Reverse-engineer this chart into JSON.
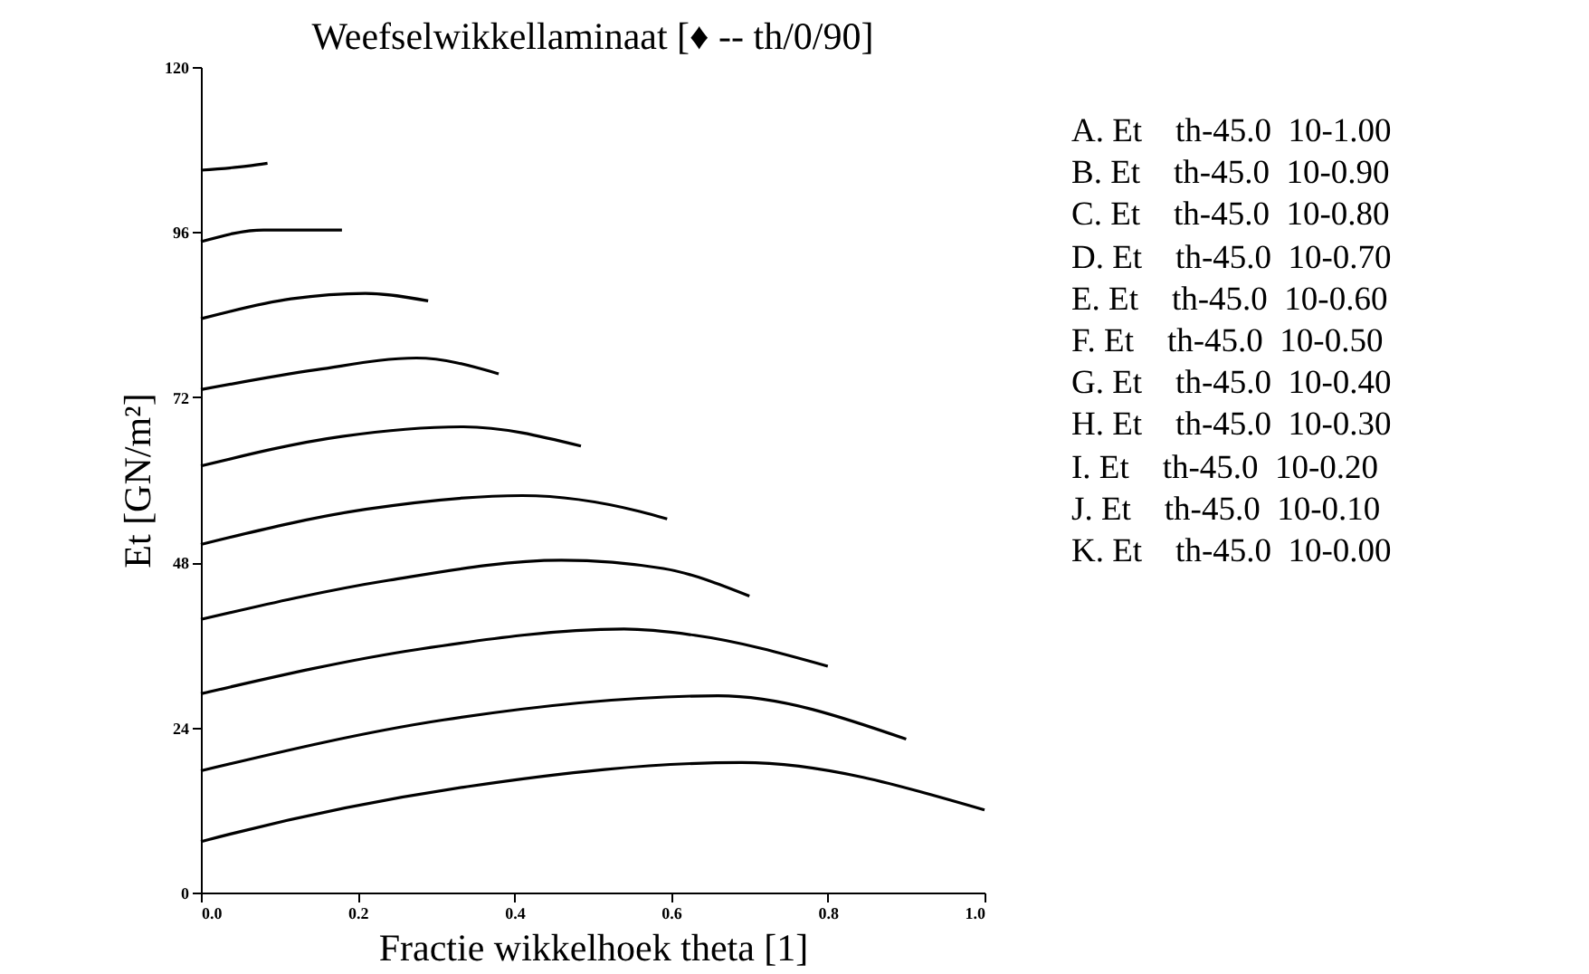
{
  "chart_data": {
    "type": "line",
    "title": "Weefselwikkellaminaat [♦ -- th/0/90]",
    "xlabel": "Fractie wikkelhoek theta [1]",
    "ylabel": "Et [GN/m²]",
    "xlim": [
      0,
      1
    ],
    "xticks": [
      {
        "value": 0,
        "label": "0.0"
      },
      0.2,
      0.4,
      0.6,
      0.8,
      {
        "value": 1,
        "label": "1.0"
      }
    ],
    "ylim": [
      0,
      120
    ],
    "yticks": [
      0,
      24,
      48,
      72,
      96,
      120
    ],
    "grid": false,
    "legend": false,
    "marker": "none",
    "line_style": "solid",
    "annotations": [
      "A. Et    th-45.0  10-1.00",
      "B. Et    th-45.0  10-0.90",
      "C. Et    th-45.0  10-0.80",
      "D. Et    th-45.0  10-0.70",
      "E. Et    th-45.0  10-0.60",
      "F. Et    th-45.0  10-0.50",
      "G. Et    th-45.0  10-0.40",
      "H. Et    th-45.0  10-0.30",
      "I. Et    th-45.0  10-0.20",
      "J. Et    th-45.0  10-0.10",
      "K. Et    th-45.0  10-0.00"
    ],
    "series": [
      {
        "color": "#000000",
        "x": [
          0,
          0.06,
          0.085
        ],
        "values": [
          105,
          105.6,
          106
        ]
      },
      {
        "color": "#000000",
        "x": [
          0,
          0.08,
          0.18
        ],
        "values": [
          94.6,
          96.3,
          96.3
        ]
      },
      {
        "color": "#000000",
        "x": [
          0,
          0.115,
          0.21,
          0.29
        ],
        "values": [
          83.4,
          86.3,
          87.1,
          86
        ]
      },
      {
        "color": "#000000",
        "x": [
          0,
          0.148,
          0.275,
          0.38
        ],
        "values": [
          73.1,
          76,
          77.7,
          75.4
        ]
      },
      {
        "color": "#000000",
        "x": [
          0,
          0.18,
          0.335,
          0.485
        ],
        "values": [
          62,
          66.3,
          67.7,
          64.9
        ]
      },
      {
        "color": "#000000",
        "x": [
          0,
          0.21,
          0.41,
          0.56,
          0.595
        ],
        "values": [
          50.6,
          55.7,
          57.7,
          55.4,
          54.3
        ]
      },
      {
        "color": "#000000",
        "x": [
          0,
          0.24,
          0.46,
          0.59,
          0.7
        ],
        "values": [
          39.7,
          45.4,
          48.3,
          47.1,
          43.1
        ]
      },
      {
        "color": "#000000",
        "x": [
          0,
          0.28,
          0.54,
          0.63,
          0.8
        ],
        "values": [
          28.9,
          35.4,
          38.3,
          37.4,
          32.9
        ]
      },
      {
        "color": "#000000",
        "x": [
          0,
          0.31,
          0.66,
          0.9
        ],
        "values": [
          17.7,
          25.1,
          28.6,
          22.3
        ]
      },
      {
        "color": "#000000",
        "x": [
          0,
          0.01,
          0.34,
          0.69,
          1
        ],
        "values": [
          7.4,
          7.7,
          15.4,
          18.9,
          12
        ]
      }
    ]
  }
}
